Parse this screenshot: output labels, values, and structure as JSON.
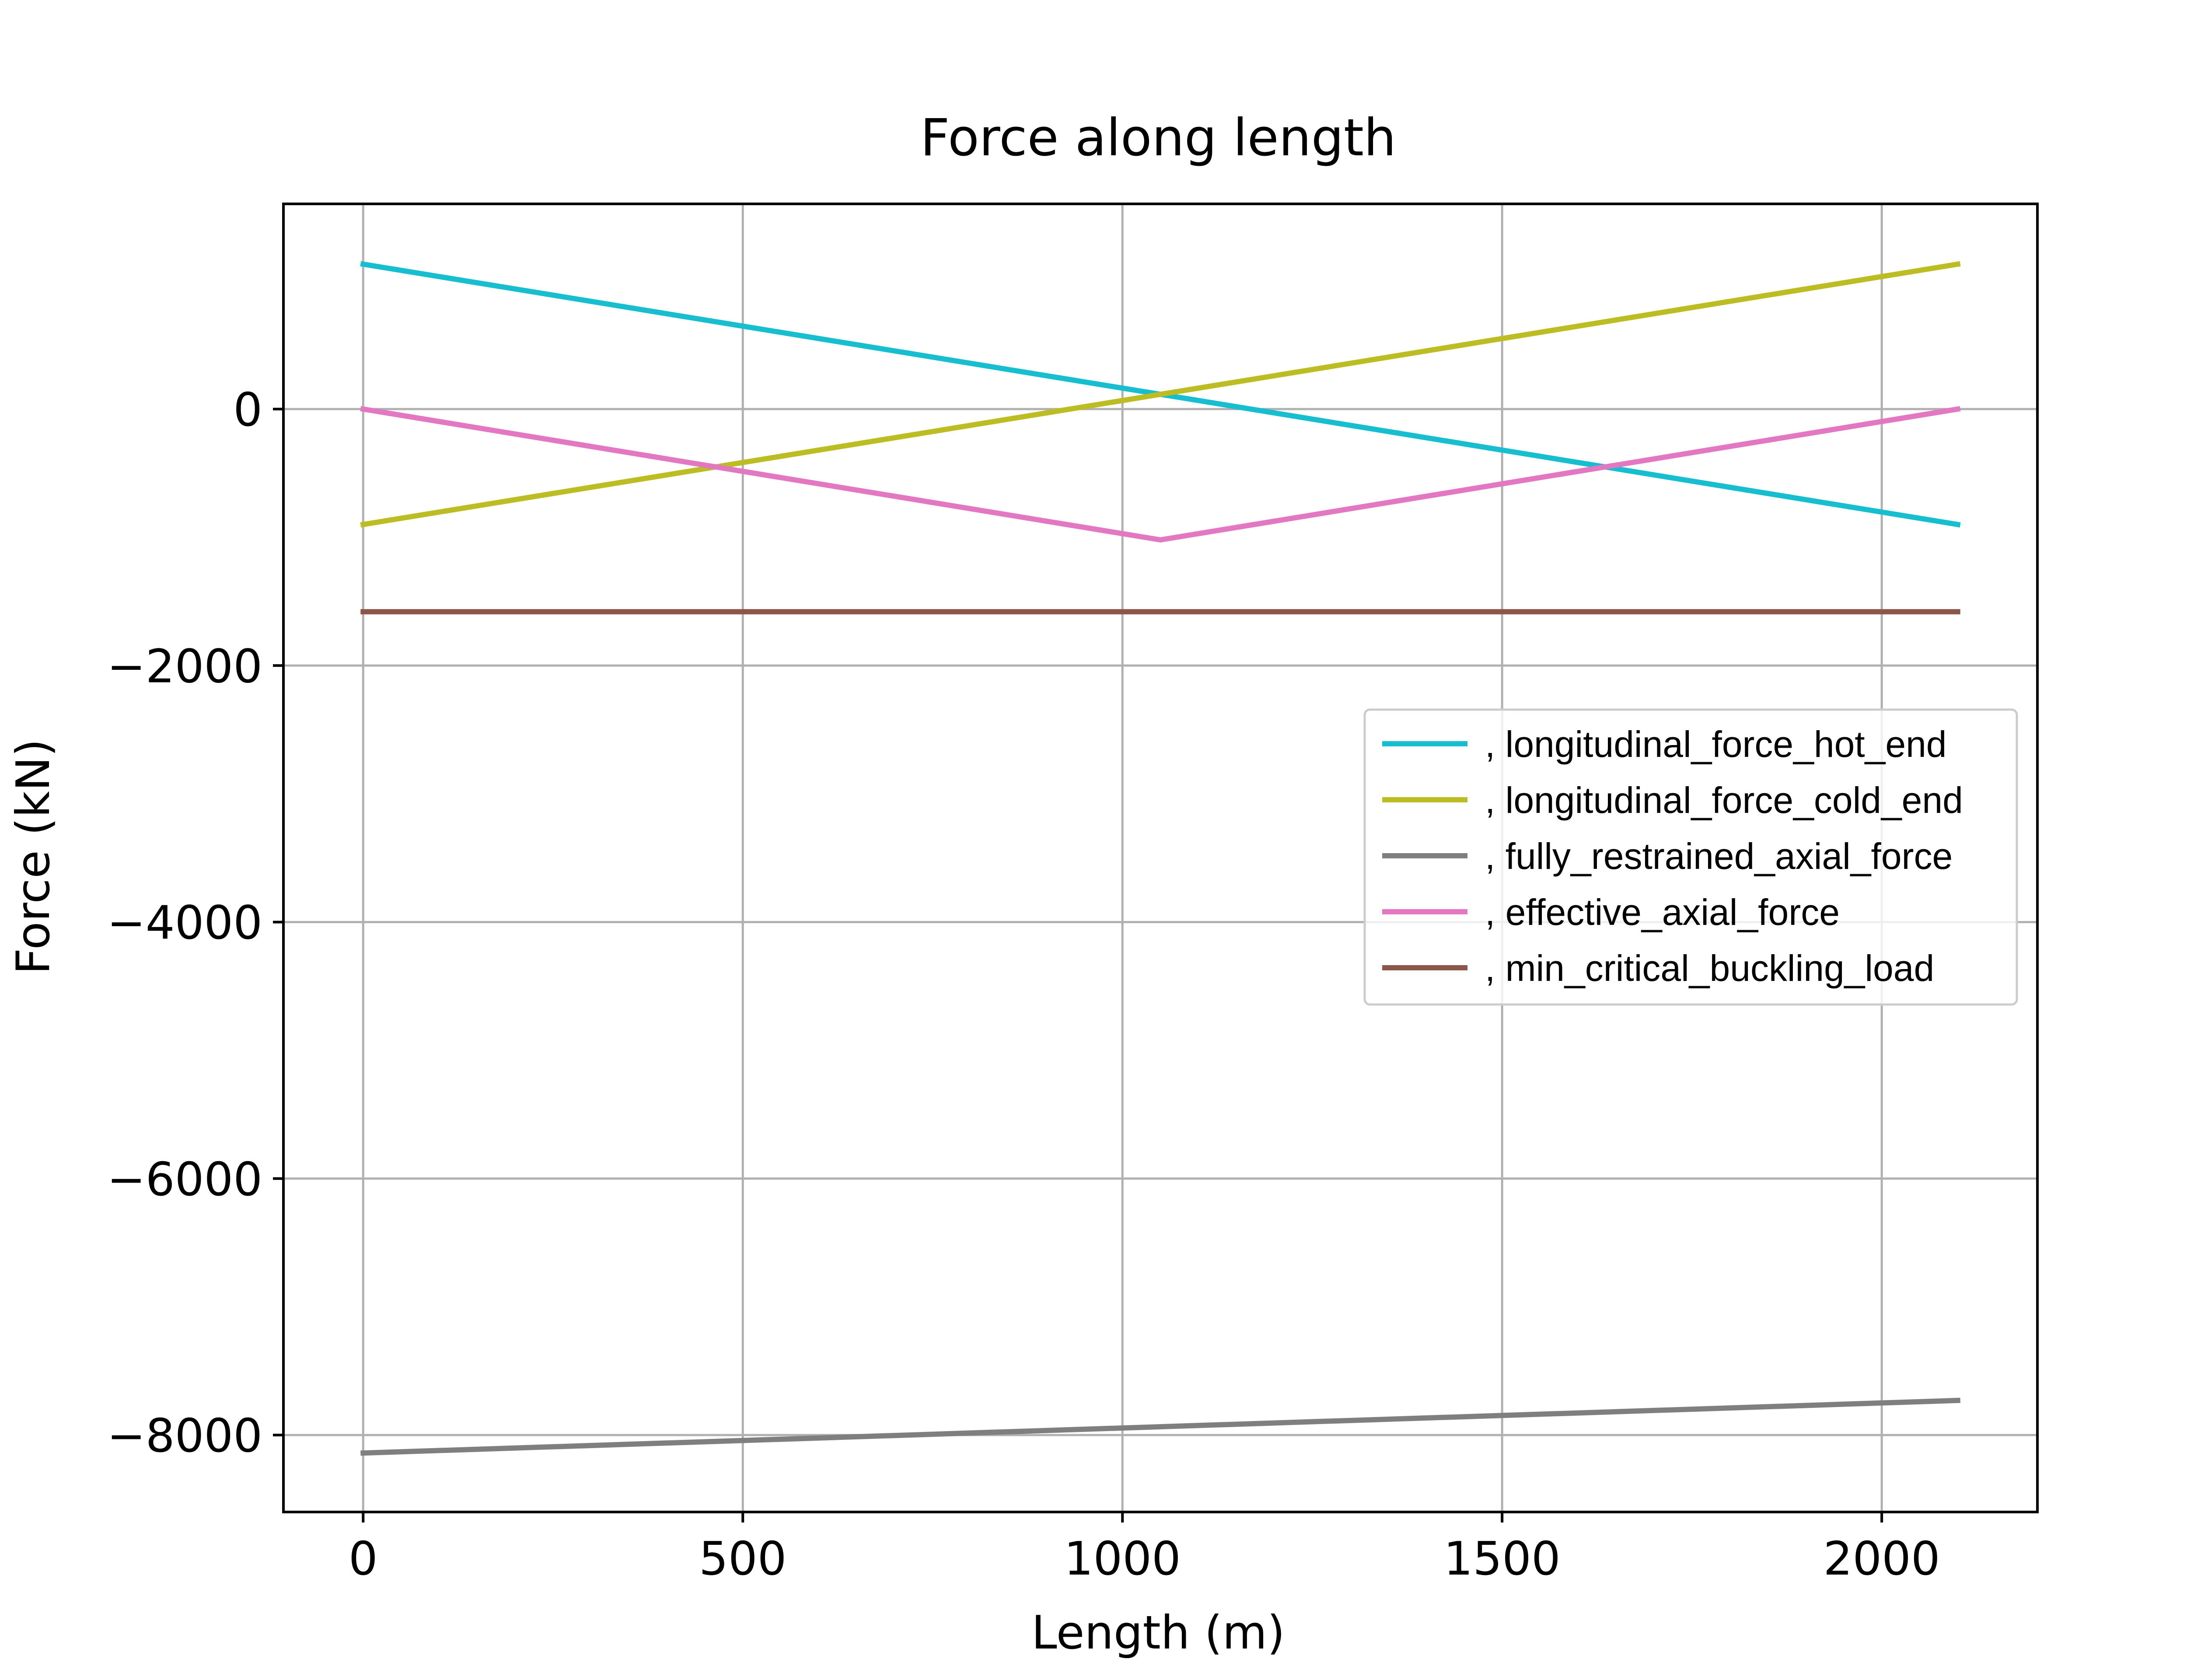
{
  "chart_data": {
    "type": "line",
    "title": "Force along length",
    "xlabel": "Length (m)",
    "ylabel": "Force (kN)",
    "xlim": [
      -105,
      2205
    ],
    "ylim": [
      -8600,
      1600
    ],
    "xticks": [
      0,
      500,
      1000,
      1500,
      2000
    ],
    "yticks": [
      0,
      -2000,
      -4000,
      -6000,
      -8000
    ],
    "xtick_labels": [
      "0",
      "500",
      "1000",
      "1500",
      "2000"
    ],
    "ytick_labels": [
      "0",
      "−2000",
      "−4000",
      "−6000",
      "−8000"
    ],
    "grid": true,
    "legend_position": "center-right",
    "series": [
      {
        "name": ", longitudinal_force_hot_end",
        "color": "#17becf",
        "x": [
          0,
          2100
        ],
        "y": [
          1130,
          -900
        ]
      },
      {
        "name": ", longitudinal_force_cold_end",
        "color": "#bcbd22",
        "x": [
          0,
          2100
        ],
        "y": [
          -900,
          1130
        ]
      },
      {
        "name": ", fully_restrained_axial_force",
        "color": "#7f7f7f",
        "x": [
          0,
          2100
        ],
        "y": [
          -8140,
          -7730
        ]
      },
      {
        "name": ", effective_axial_force",
        "color": "#e377c2",
        "x": [
          0,
          1050,
          2100
        ],
        "y": [
          0,
          -1020,
          0
        ]
      },
      {
        "name": ", min_critical_buckling_load",
        "color": "#8c564b",
        "x": [
          0,
          2100
        ],
        "y": [
          -1580,
          -1580
        ]
      }
    ]
  }
}
